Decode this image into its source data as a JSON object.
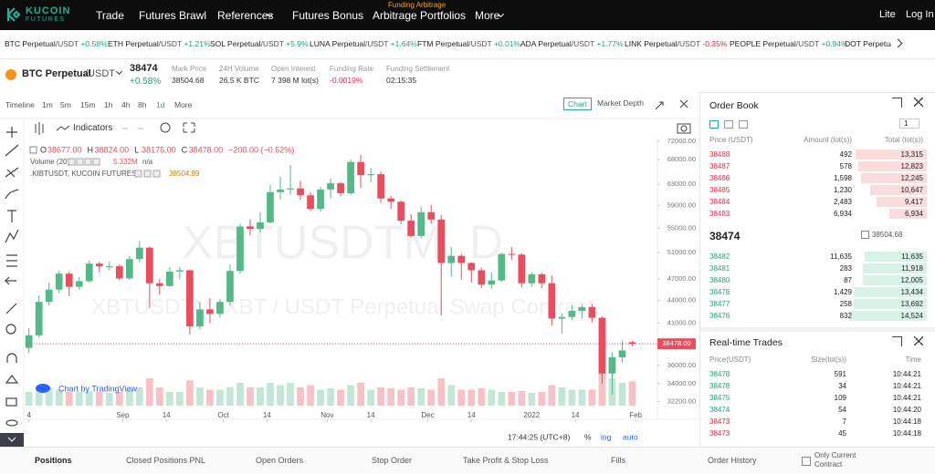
{
  "nav": {
    "logo_top": "KUCOIN",
    "logo_bottom": "FUTURES",
    "items": [
      "Trade",
      "Futures Brawl",
      "References",
      "Futures Bonus",
      "Arbitrage Portfolios",
      "More"
    ],
    "badge": "Funding Arbitrage",
    "right": [
      "Lite",
      "Log In"
    ]
  },
  "ticker": [
    {
      "name": "BTC Perpetual",
      "quote": "/USDT",
      "change": "+0.58%"
    },
    {
      "name": "ETH Perpetual",
      "quote": "/USDT",
      "change": "+1.21%"
    },
    {
      "name": "SOL Perpetual",
      "quote": "/USDT",
      "change": "+5.9%"
    },
    {
      "name": "LUNA Perpetual",
      "quote": "/USDT",
      "change": "+1.64%"
    },
    {
      "name": "FTM Perpetual",
      "quote": "/USDT",
      "change": "+0.01%"
    },
    {
      "name": "ADA Perpetual",
      "quote": "/USDT",
      "change": "+1.77%"
    },
    {
      "name": "LINK Perpetual",
      "quote": "/USDT",
      "change": "-0.35%"
    },
    {
      "name": "PEOPLE Perpetual",
      "quote": "/USDT",
      "change": "+0.94%"
    },
    {
      "name": "DOT Perpetual"
    }
  ],
  "contract": {
    "symbol": "BTC Perpetual",
    "quote": "/USDT",
    "price": "38474",
    "change": "+0.58%",
    "stats": [
      {
        "label": "Mark Price",
        "value": "38504.68"
      },
      {
        "label": "24H Volume",
        "value": "26.5 K BTC"
      },
      {
        "label": "Open Interest",
        "value": "7 398 M lot(s)"
      },
      {
        "label": "Funding Rate",
        "value": "-0.0019%"
      },
      {
        "label": "Funding Settlement",
        "value": "02:15:35"
      }
    ]
  },
  "toolbar": {
    "timeline": "Timeline",
    "intervals": [
      "1m",
      "5m",
      "15m",
      "1h",
      "4h",
      "8h",
      "1d"
    ],
    "more": "More",
    "indicators": "Indicators",
    "views": [
      "Chart",
      "Market Depth"
    ]
  },
  "chart_data": {
    "type": "candlestick",
    "watermark": "XBTUSDTM, D",
    "watermark_sub": "XBTUSDTM, XBT / USDT Perpetual Swap Contract",
    "legend": {
      "items": [
        {
          "key": "O",
          "value": "38677.00"
        },
        {
          "key": "H",
          "value": "38824.00"
        },
        {
          "key": "L",
          "value": "38175.00"
        },
        {
          "key": "C",
          "value": "38478.00"
        }
      ],
      "change": "−200.00 (−0.52%)",
      "volume_label": "Volume (20)",
      "volume_value": "5.332M",
      "volume_ma": "n/a",
      "index_label": ".KIBTUSDT, KUCOIN FUTURES",
      "index_value": "38504.89"
    },
    "x": [
      0,
      3,
      6,
      9,
      12,
      15,
      18,
      21,
      24,
      27,
      30,
      33,
      36,
      39,
      42,
      45,
      48,
      51,
      54,
      57,
      60,
      63,
      66,
      69,
      72,
      75,
      78,
      81,
      84,
      87,
      90,
      93,
      96,
      99,
      102,
      105,
      108,
      111,
      114,
      117,
      120,
      123,
      126,
      129,
      132,
      135,
      138,
      141,
      144,
      147,
      150,
      153,
      156,
      159,
      162,
      165,
      168,
      171,
      174,
      177,
      180
    ],
    "open": [
      38000,
      39500,
      43800,
      45500,
      47800,
      45900,
      46700,
      49300,
      48900,
      48900,
      47100,
      50000,
      51800,
      46400,
      46000,
      48100,
      48300,
      40600,
      42800,
      42200,
      43800,
      48200,
      55300,
      54900,
      56000,
      61500,
      62000,
      62200,
      60900,
      58400,
      62000,
      63200,
      61300,
      67500,
      64800,
      65000,
      60300,
      59700,
      56300,
      53700,
      57800,
      56500,
      49400,
      50500,
      49400,
      48300,
      46200,
      46800,
      50800,
      50700,
      46400,
      47700,
      46400,
      41600,
      41800,
      42600,
      43100,
      41700,
      35100,
      36900,
      38677
    ],
    "high": [
      40400,
      44700,
      46500,
      48200,
      48100,
      47300,
      49800,
      49600,
      49600,
      49200,
      50500,
      52900,
      52000,
      47000,
      48800,
      48800,
      48400,
      43800,
      44300,
      44200,
      49200,
      55800,
      56500,
      57800,
      62900,
      64500,
      66900,
      63700,
      61500,
      62500,
      64200,
      63500,
      68000,
      69000,
      66300,
      65500,
      60800,
      59900,
      57400,
      58800,
      59100,
      57300,
      51900,
      50800,
      49500,
      48700,
      48000,
      51000,
      51900,
      50900,
      48000,
      47900,
      47500,
      42300,
      43400,
      43500,
      43500,
      41900,
      37500,
      38900,
      38824
    ],
    "low": [
      37400,
      39200,
      43300,
      45000,
      44600,
      45500,
      46500,
      48000,
      48300,
      46800,
      46900,
      49500,
      43000,
      44800,
      45900,
      47000,
      39600,
      40200,
      41000,
      41700,
      43300,
      47800,
      53800,
      54300,
      55800,
      60100,
      61000,
      60000,
      58000,
      57900,
      60300,
      60700,
      60900,
      62300,
      63400,
      59500,
      58400,
      55700,
      53500,
      53300,
      55800,
      42000,
      47400,
      46900,
      46500,
      45700,
      45600,
      46600,
      49900,
      45800,
      45900,
      45700,
      40700,
      39700,
      41400,
      41600,
      41100,
      34000,
      32900,
      36300,
      38175
    ],
    "close": [
      39500,
      43800,
      45500,
      47800,
      45900,
      46700,
      49300,
      48900,
      48900,
      47100,
      50000,
      51800,
      46400,
      46000,
      48100,
      48300,
      40600,
      42800,
      42200,
      43800,
      48200,
      55300,
      54900,
      56000,
      61500,
      62000,
      62200,
      60900,
      58400,
      62000,
      63200,
      61300,
      67500,
      64800,
      65000,
      60300,
      59700,
      56300,
      53700,
      57800,
      56500,
      49400,
      50500,
      49400,
      48300,
      46200,
      46800,
      50800,
      50700,
      46400,
      47700,
      46400,
      41600,
      41800,
      42600,
      43100,
      41700,
      35100,
      36900,
      37700,
      38478
    ],
    "volume": [
      3,
      4,
      4,
      3.5,
      3,
      3,
      3.2,
      3,
      2.8,
      3,
      3.5,
      4,
      6,
      4,
      3,
      3,
      5.5,
      4,
      3.5,
      3.5,
      4,
      5,
      4,
      4,
      5,
      4.5,
      5,
      4,
      4.5,
      3.5,
      3.8,
      3.5,
      4.5,
      5,
      3.5,
      4,
      3.8,
      3.5,
      4,
      3.8,
      3.5,
      6,
      4.5,
      3.5,
      3.5,
      3.8,
      3.5,
      3,
      3,
      3.2,
      2.8,
      3,
      4.5,
      4,
      3.5,
      3.5,
      3.5,
      8,
      6,
      5,
      5.332
    ],
    "up_color": "#53b987",
    "down_color": "#eb4d5c",
    "yscale": "log",
    "ylim": [
      30900,
      73400
    ],
    "xlim": [
      -1,
      187.5
    ],
    "vol_lim": [
      0,
      12
    ],
    "yticks": [
      {
        "value": 72000,
        "label": "72000.00"
      },
      {
        "value": 68000,
        "label": "68000.00"
      },
      {
        "value": 63000,
        "label": "63000.00"
      },
      {
        "value": 59000,
        "label": "59000.00"
      },
      {
        "value": 55000,
        "label": "55000.00"
      },
      {
        "value": 51000,
        "label": "51000.00"
      },
      {
        "value": 47000,
        "label": "47000.00"
      },
      {
        "value": 44000,
        "label": "44000.00"
      },
      {
        "value": 41000,
        "label": "41000.00"
      },
      {
        "value": 36000,
        "label": "36000.00"
      },
      {
        "value": 34000,
        "label": "34000.00"
      },
      {
        "value": 32200,
        "label": "32200.00"
      }
    ],
    "xticks": [
      {
        "value": 0,
        "label": "4"
      },
      {
        "value": 28,
        "label": "Sep"
      },
      {
        "value": 41,
        "label": "14"
      },
      {
        "value": 58,
        "label": "Oct"
      },
      {
        "value": 71,
        "label": "14"
      },
      {
        "value": 89,
        "label": "Nov"
      },
      {
        "value": 102,
        "label": "14"
      },
      {
        "value": 119,
        "label": "Dec"
      },
      {
        "value": 132,
        "label": "14"
      },
      {
        "value": 150,
        "label": "2022"
      },
      {
        "value": 163,
        "label": "14"
      },
      {
        "value": 181,
        "label": "Feb"
      }
    ],
    "last_price": {
      "value": 38478,
      "label": "38478.00"
    },
    "credit": "Chart by TradingView",
    "clock": "17:44:25 (UTC+8)",
    "scale_buttons": [
      "%",
      "log",
      "auto"
    ]
  },
  "order_book": {
    "title": "Order Book",
    "precision": "1",
    "headers": [
      "Price (USDT)",
      "Amount (lot(s))",
      "Total (lot(s))"
    ],
    "asks": [
      {
        "price": 38488,
        "amount": 492,
        "total": {
          "value": 13315,
          "label": "13,315"
        }
      },
      {
        "price": 38487,
        "amount": 578,
        "total": {
          "value": 12823,
          "label": "12,823"
        }
      },
      {
        "price": 38486,
        "amount": {
          "value": 1598,
          "label": "1,598"
        },
        "total": {
          "value": 12245,
          "label": "12,245"
        }
      },
      {
        "price": 38485,
        "amount": {
          "value": 1230,
          "label": "1,230"
        },
        "total": {
          "value": 10647,
          "label": "10,647"
        }
      },
      {
        "price": 38484,
        "amount": {
          "value": 2483,
          "label": "2,483"
        },
        "total": {
          "value": 9417,
          "label": "9,417"
        }
      },
      {
        "price": 38483,
        "amount": {
          "value": 6934,
          "label": "6,934"
        },
        "total": {
          "value": 6934,
          "label": "6,934"
        }
      }
    ],
    "last": "38474",
    "mark": "38504.68",
    "bids": [
      {
        "price": 38482,
        "amount": {
          "value": 11635,
          "label": "11,635"
        },
        "total": {
          "value": 11635,
          "label": "11,635"
        }
      },
      {
        "price": 38481,
        "amount": 283,
        "total": {
          "value": 11918,
          "label": "11,918"
        }
      },
      {
        "price": 38480,
        "amount": 87,
        "total": {
          "value": 12005,
          "label": "12,005"
        }
      },
      {
        "price": 38478,
        "amount": {
          "value": 1429,
          "label": "1,429"
        },
        "total": {
          "value": 13434,
          "label": "13,434"
        }
      },
      {
        "price": 38477,
        "amount": 258,
        "total": {
          "value": 13692,
          "label": "13,692"
        }
      },
      {
        "price": 38476,
        "amount": 832,
        "total": {
          "value": 14524,
          "label": "14,524"
        }
      }
    ]
  },
  "trades": {
    "title": "Real-time Trades",
    "headers": [
      "Price(USDT)",
      "Size(lot(s))",
      "Time"
    ],
    "rows": [
      {
        "price": 38478,
        "size": 591,
        "time": "10:44:21",
        "color": "#26a17b"
      },
      {
        "price": 38478,
        "size": 34,
        "time": "10:44:21",
        "color": "#26a17b"
      },
      {
        "price": 38475,
        "size": 109,
        "time": "10:44:21",
        "color": "#26a17b"
      },
      {
        "price": 38474,
        "size": 54,
        "time": "10:44:20",
        "color": "#26a17b"
      },
      {
        "price": 38473,
        "size": 7,
        "time": "10:44:18",
        "color": "#e0294a"
      },
      {
        "price": 38473,
        "size": 45,
        "time": "10:44:18",
        "color": "#e0294a"
      }
    ]
  },
  "bottom_tabs": [
    "Positions",
    "Closed Positions PNL",
    "Open Orders",
    "Stop Order",
    "Take Profit & Stop Loss",
    "Fills",
    "Order History"
  ],
  "only_current": "Only Current Contract"
}
